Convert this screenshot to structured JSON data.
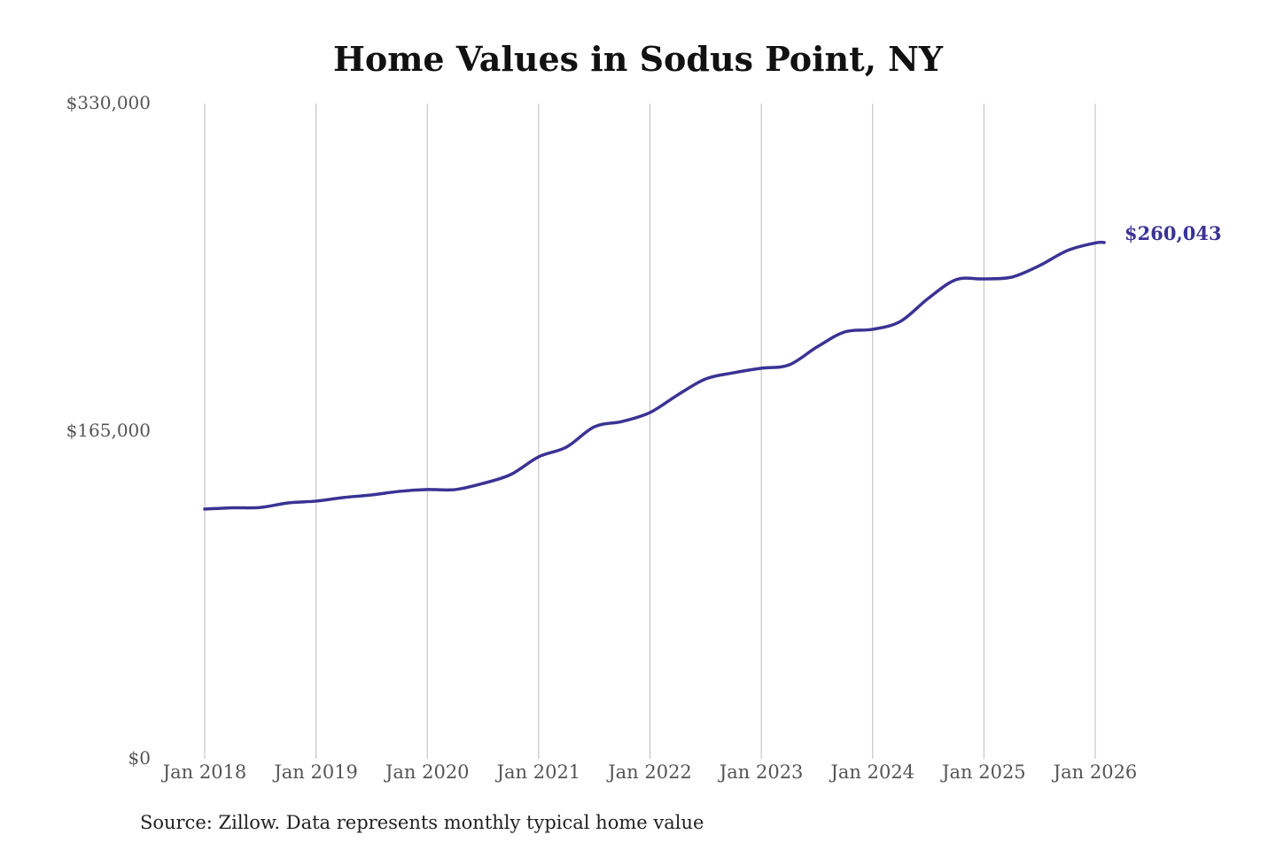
{
  "chart_data": {
    "type": "line",
    "title": "Home Values in Sodus Point, NY",
    "xlabel": "",
    "ylabel": "",
    "ylim": [
      0,
      330000
    ],
    "xlim": [
      2018.0,
      2026.0
    ],
    "grid": "vertical",
    "line_color": "#3a3394",
    "y_ticks": [
      {
        "value": 0,
        "label": "$0"
      },
      {
        "value": 165000,
        "label": "$165,000"
      },
      {
        "value": 330000,
        "label": "$330,000"
      }
    ],
    "x_ticks": [
      {
        "value": 2018,
        "label": "Jan 2018"
      },
      {
        "value": 2019,
        "label": "Jan 2019"
      },
      {
        "value": 2020,
        "label": "Jan 2020"
      },
      {
        "value": 2021,
        "label": "Jan 2021"
      },
      {
        "value": 2022,
        "label": "Jan 2022"
      },
      {
        "value": 2023,
        "label": "Jan 2023"
      },
      {
        "value": 2024,
        "label": "Jan 2024"
      },
      {
        "value": 2025,
        "label": "Jan 2025"
      },
      {
        "value": 2026,
        "label": "Jan 2026"
      }
    ],
    "series": [
      {
        "name": "Typical home value",
        "x": [
          2018.0,
          2018.25,
          2018.5,
          2018.75,
          2019.0,
          2019.25,
          2019.5,
          2019.75,
          2020.0,
          2020.25,
          2020.5,
          2020.75,
          2021.0,
          2021.25,
          2021.5,
          2021.75,
          2022.0,
          2022.25,
          2022.5,
          2022.75,
          2023.0,
          2023.25,
          2023.5,
          2023.75,
          2024.0,
          2024.25,
          2024.5,
          2024.75,
          2025.0,
          2025.25,
          2025.5,
          2025.75,
          2026.0,
          2026.08
        ],
        "values": [
          125800,
          126400,
          126600,
          128900,
          129800,
          131600,
          132900,
          134700,
          135600,
          135600,
          138700,
          143200,
          152100,
          157000,
          167200,
          169900,
          174400,
          183300,
          191300,
          194400,
          196700,
          198400,
          207400,
          215000,
          216300,
          220300,
          231900,
          241300,
          241700,
          242600,
          248400,
          256000,
          259800,
          260043
        ]
      }
    ],
    "end_label": "$260,043",
    "source": "Source: Zillow. Data represents monthly typical home value"
  }
}
